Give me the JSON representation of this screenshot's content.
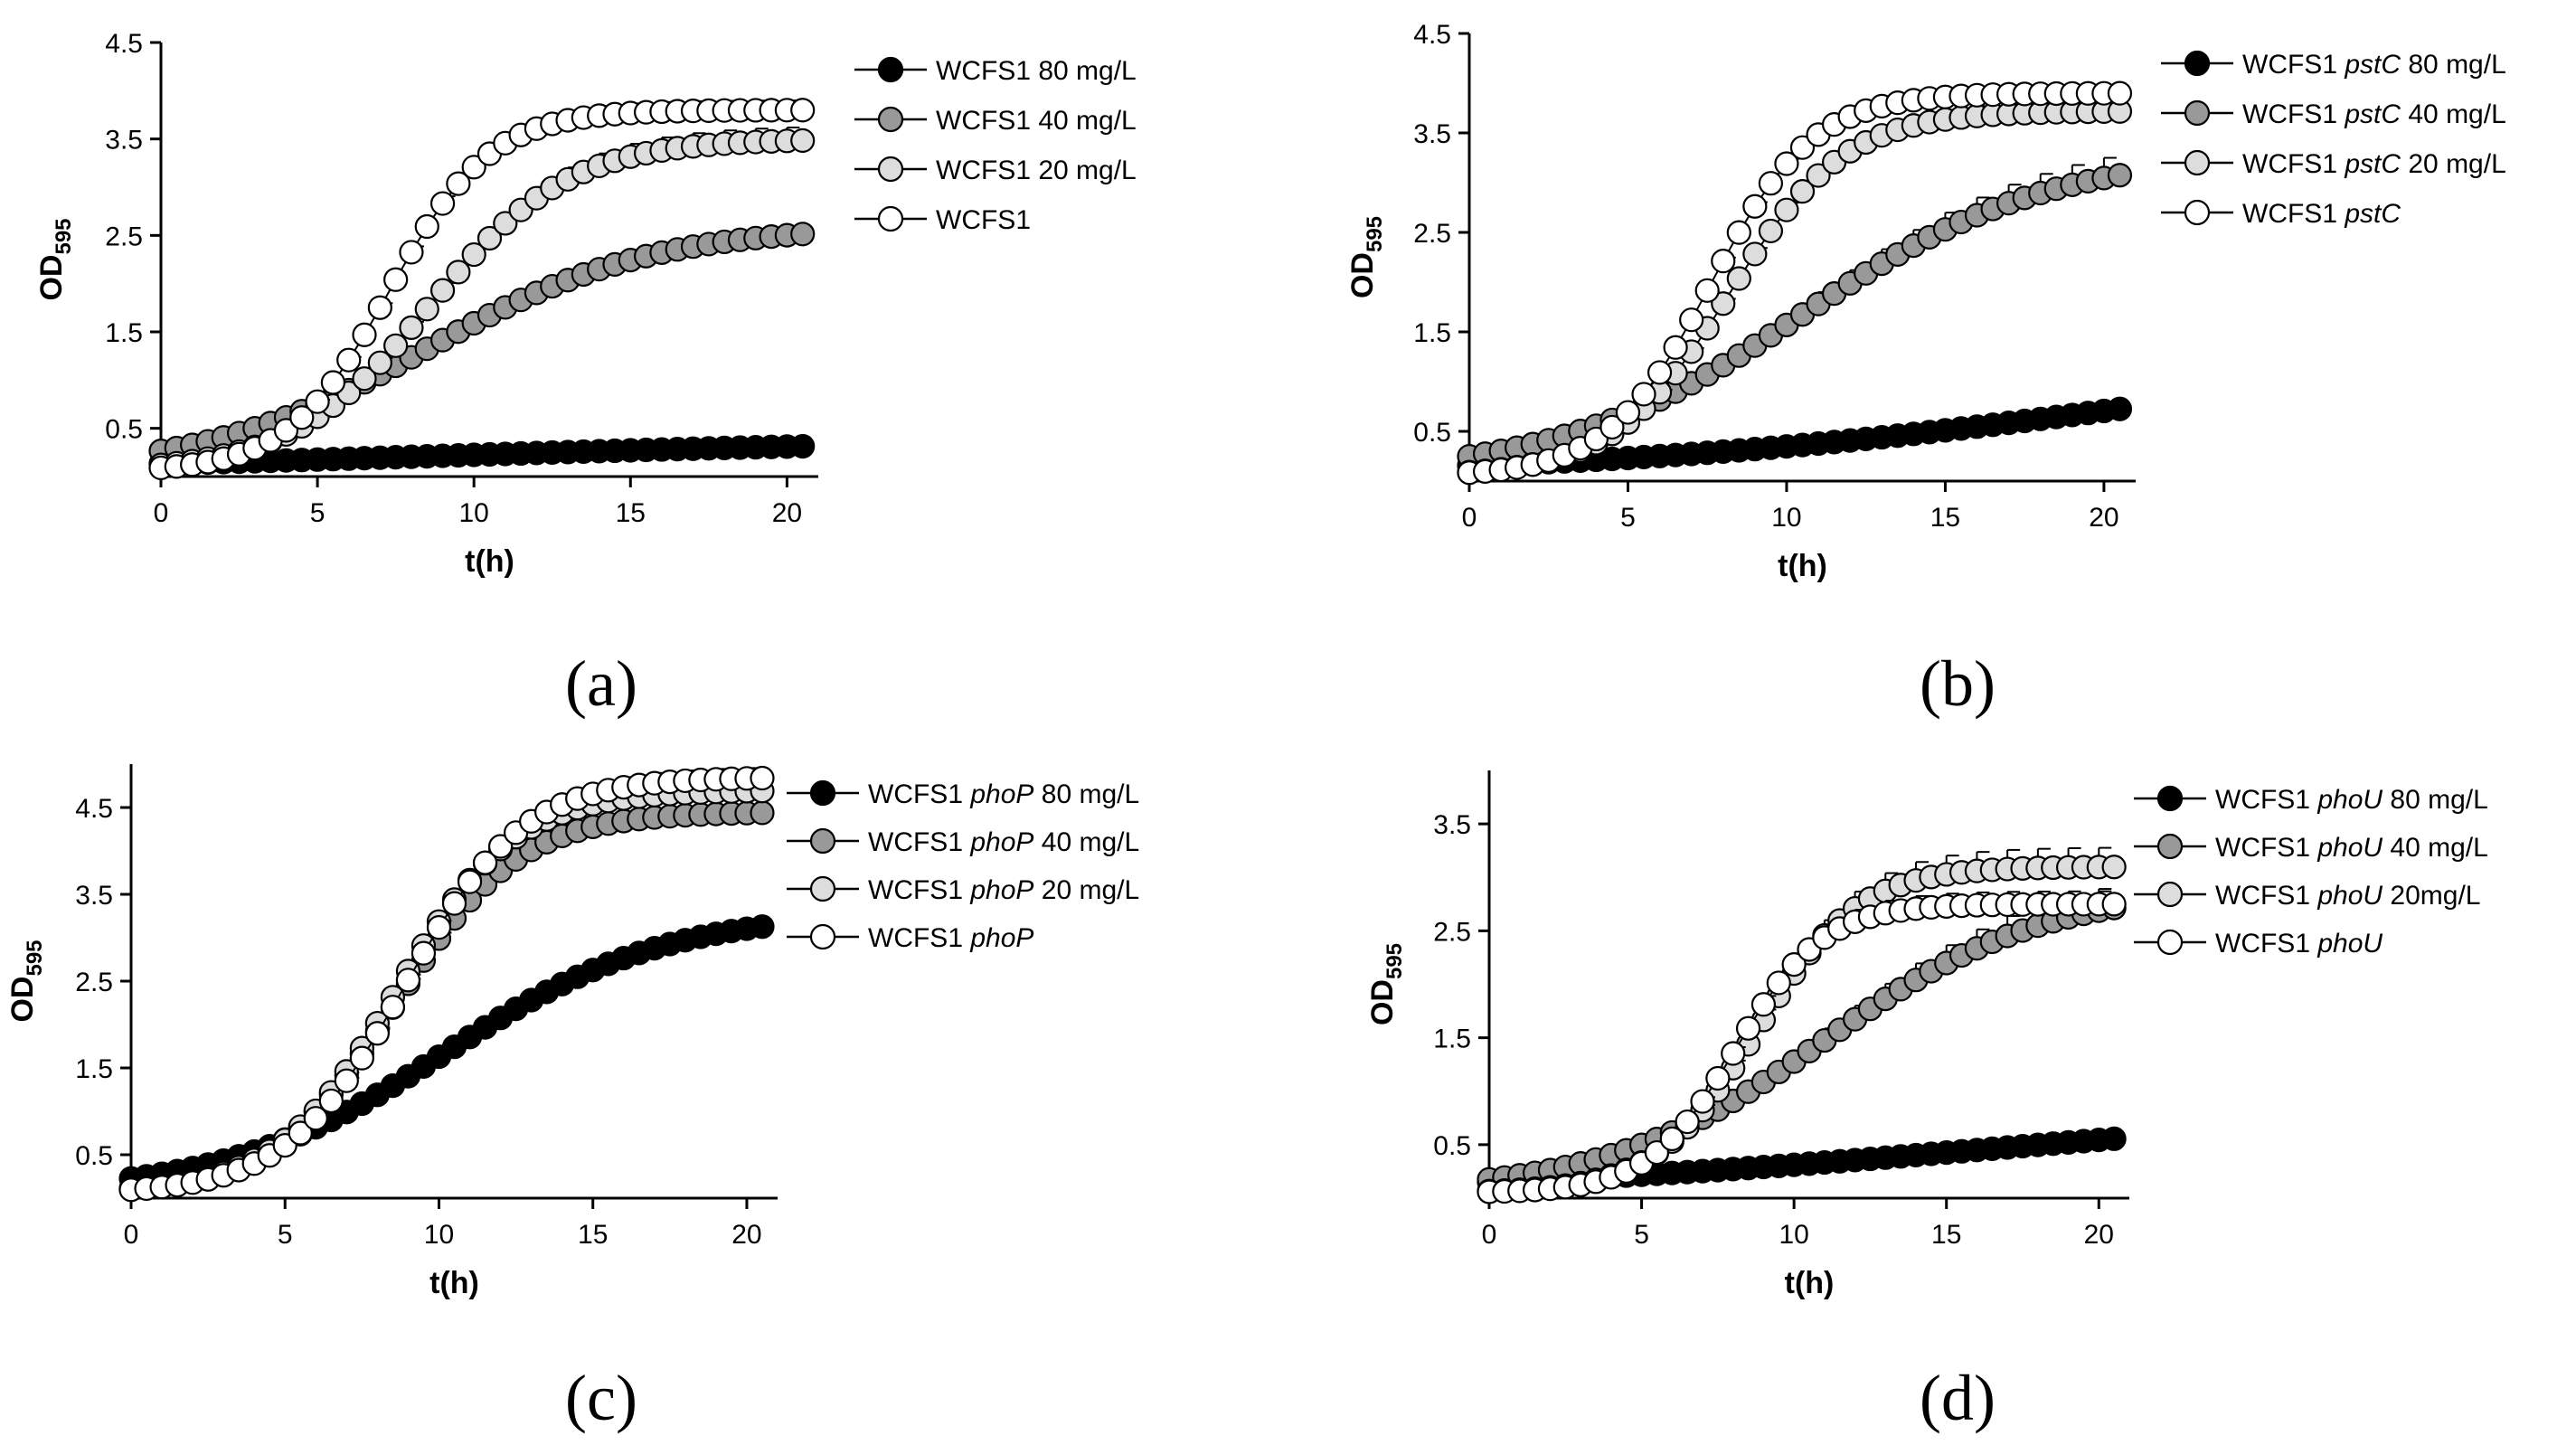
{
  "chart_data": [
    {
      "type": "scatter",
      "panel_label": "(a)",
      "xlabel": "t(h)",
      "ylabel_main": "OD",
      "ylabel_sub": "595",
      "xlim": [
        0,
        21
      ],
      "ylim": [
        0,
        4.5
      ],
      "xticks": [
        0,
        5,
        10,
        15,
        20
      ],
      "yticks": [
        0.5,
        1.5,
        2.5,
        3.5,
        4.5
      ],
      "series": [
        {
          "legend": [
            "WCFS1 80 mg/L"
          ],
          "fill": "#000000",
          "K": 0.38,
          "r": 0.12,
          "t0": 9,
          "err": 0.04
        },
        {
          "legend": [
            "WCFS1 40 mg/L"
          ],
          "fill": "#999999",
          "K": 2.6,
          "r": 0.28,
          "t0": 8.5,
          "err": 0.08
        },
        {
          "legend": [
            "WCFS1 20 mg/L"
          ],
          "fill": "#dddddd",
          "K": 3.5,
          "r": 0.45,
          "t0": 8.6,
          "err": 0.14
        },
        {
          "legend": [
            "WCFS1"
          ],
          "fill": "#ffffff",
          "K": 3.8,
          "r": 0.62,
          "t0": 7.3,
          "err": 0.1
        }
      ]
    },
    {
      "type": "scatter",
      "panel_label": "(b)",
      "xlabel": "t(h)",
      "ylabel_main": "OD",
      "ylabel_sub": "595",
      "xlim": [
        0,
        21
      ],
      "ylim": [
        0,
        4.5
      ],
      "xticks": [
        0,
        5,
        10,
        15,
        20
      ],
      "yticks": [
        0.5,
        1.5,
        2.5,
        3.5,
        4.5
      ],
      "series": [
        {
          "legend": [
            "WCFS1 ",
            "pstC",
            " 80 mg/L"
          ],
          "fill": "#000000",
          "K": 1.4,
          "r": 0.12,
          "t0": 20.5,
          "err": 0.04
        },
        {
          "legend": [
            "WCFS1 ",
            "pstC",
            " 40 mg/L"
          ],
          "fill": "#999999",
          "K": 3.3,
          "r": 0.26,
          "t0": 10.5,
          "err": 0.22
        },
        {
          "legend": [
            "WCFS1 ",
            "pstC",
            " 20 mg/L"
          ],
          "fill": "#dddddd",
          "K": 3.72,
          "r": 0.55,
          "t0": 8.2,
          "err": 0.1
        },
        {
          "legend": [
            "WCFS1 ",
            "pstC"
          ],
          "fill": "#ffffff",
          "K": 3.9,
          "r": 0.62,
          "t0": 7.6,
          "err": 0.06
        }
      ]
    },
    {
      "type": "scatter",
      "panel_label": "(c)",
      "xlabel": "t(h)",
      "ylabel_main": "OD",
      "ylabel_sub": "595",
      "xlim": [
        0,
        21
      ],
      "ylim": [
        0,
        5
      ],
      "xticks": [
        0,
        5,
        10,
        15,
        20
      ],
      "yticks": [
        0.5,
        1.5,
        2.5,
        3.5,
        4.5
      ],
      "series": [
        {
          "legend": [
            "WCFS1 ",
            "phoP",
            " 80 mg/L"
          ],
          "fill": "#000000",
          "K": 3.3,
          "r": 0.28,
          "t0": 10.2,
          "err": 0.04
        },
        {
          "legend": [
            "WCFS1 ",
            "phoP",
            " 40 mg/L"
          ],
          "fill": "#999999",
          "K": 4.45,
          "r": 0.5,
          "t0": 8.6,
          "err": 0.1
        },
        {
          "legend": [
            "WCFS1 ",
            "phoP",
            " 20 mg/L"
          ],
          "fill": "#dddddd",
          "K": 4.7,
          "r": 0.52,
          "t0": 8.6,
          "err": 0.14
        },
        {
          "legend": [
            "WCFS1 ",
            "phoP"
          ],
          "fill": "#ffffff",
          "K": 4.85,
          "r": 0.52,
          "t0": 8.9,
          "err": 0.12
        }
      ]
    },
    {
      "type": "scatter",
      "panel_label": "(d)",
      "xlabel": "t(h)",
      "ylabel_main": "OD",
      "ylabel_sub": "595",
      "xlim": [
        0,
        21
      ],
      "ylim": [
        0,
        4
      ],
      "xticks": [
        0,
        5,
        10,
        15,
        20
      ],
      "yticks": [
        0.5,
        1.5,
        2.5,
        3.5
      ],
      "series": [
        {
          "legend": [
            "WCFS1 ",
            "phoU",
            " 80 mg/L"
          ],
          "fill": "#000000",
          "K": 0.85,
          "r": 0.12,
          "t0": 16,
          "err": 0.04
        },
        {
          "legend": [
            "WCFS1 ",
            "phoU",
            " 40 mg/L"
          ],
          "fill": "#999999",
          "K": 2.9,
          "r": 0.28,
          "t0": 11,
          "err": 0.22
        },
        {
          "legend": [
            "WCFS1 ",
            "phoU",
            " 20mg/L"
          ],
          "fill": "#dddddd",
          "K": 3.1,
          "r": 0.6,
          "t0": 8.8,
          "err": 0.18
        },
        {
          "legend": [
            "WCFS1 ",
            "phoU"
          ],
          "fill": "#ffffff",
          "K": 2.75,
          "r": 0.7,
          "t0": 8.1,
          "err": 0.12
        }
      ]
    }
  ]
}
